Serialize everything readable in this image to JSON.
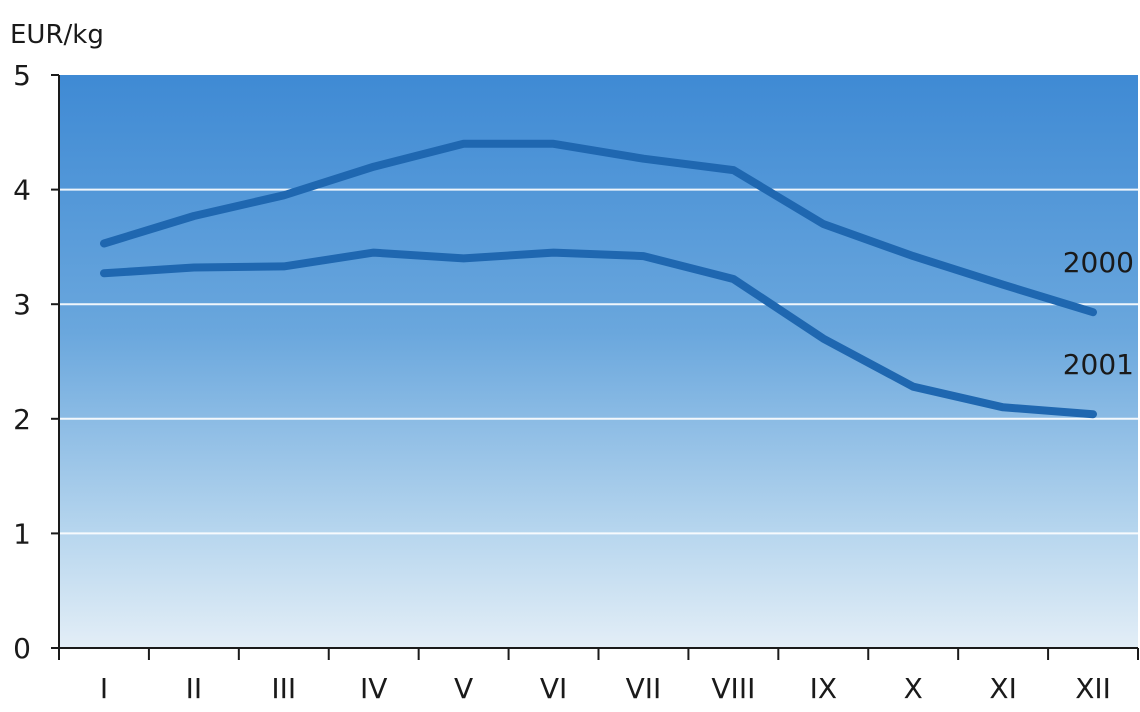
{
  "chart_data": {
    "type": "line",
    "ylabel": "EUR/kg",
    "ylim": [
      0,
      5
    ],
    "yticks": [
      0,
      1,
      2,
      3,
      4,
      5
    ],
    "categories": [
      "I",
      "II",
      "III",
      "IV",
      "V",
      "VI",
      "VII",
      "VIII",
      "IX",
      "X",
      "XI",
      "XII"
    ],
    "grid": true,
    "background": "blue gradient",
    "series": [
      {
        "name": "2000",
        "values": [
          3.53,
          3.77,
          3.95,
          4.2,
          4.4,
          4.4,
          4.27,
          4.17,
          3.7,
          3.42,
          3.17,
          2.93
        ],
        "color": "#1f67b0"
      },
      {
        "name": "2001",
        "values": [
          3.27,
          3.32,
          3.33,
          3.45,
          3.4,
          3.45,
          3.42,
          3.22,
          2.7,
          2.28,
          2.1,
          2.04
        ],
        "color": "#1f67b0"
      }
    ]
  }
}
